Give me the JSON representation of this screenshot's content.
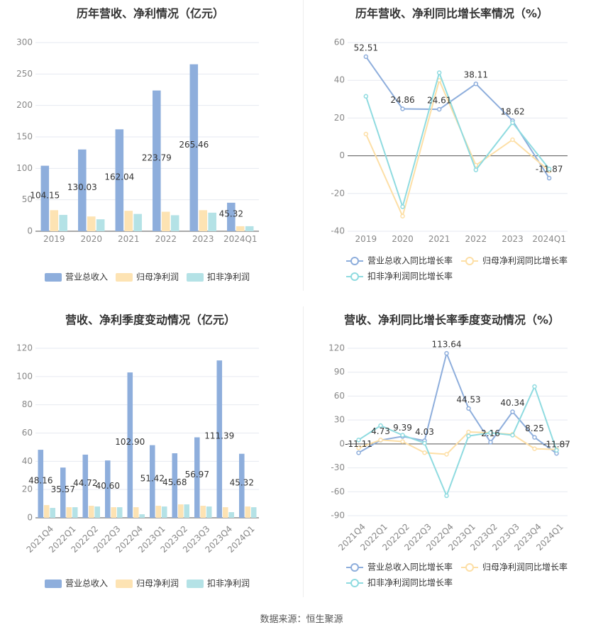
{
  "source_label": "数据来源：恒生聚源",
  "chart_data": [
    {
      "id": "annual-amount",
      "type": "bar",
      "title": "历年营收、净利情况（亿元）",
      "categories": [
        "2019",
        "2020",
        "2021",
        "2022",
        "2023",
        "2024Q1"
      ],
      "ylim": [
        0,
        300
      ],
      "yticks": [
        0,
        50,
        100,
        150,
        200,
        250,
        300
      ],
      "series": [
        {
          "name": "营业总收入",
          "color": "#8eaedc",
          "values": [
            104.15,
            130.03,
            162.04,
            223.79,
            265.46,
            45.32
          ],
          "show_labels": true
        },
        {
          "name": "归母净利润",
          "color": "#fde3b3",
          "values": [
            33.5,
            23.5,
            32.5,
            31,
            33.5,
            8
          ]
        },
        {
          "name": "扣非净利润",
          "color": "#b4e2e6",
          "values": [
            26,
            19,
            27.5,
            25.5,
            29.5,
            8
          ]
        }
      ],
      "data_labels": [
        "104.15",
        "130.03",
        "162.04",
        "223.79",
        "265.46",
        "45.32"
      ],
      "legend_position": "bottom",
      "grid": true
    },
    {
      "id": "annual-growth",
      "type": "line",
      "title": "历年营收、净利同比增长率情况（%）",
      "categories": [
        "2019",
        "2020",
        "2021",
        "2022",
        "2023",
        "2024Q1"
      ],
      "ylim": [
        -40,
        60
      ],
      "yticks": [
        -40,
        -20,
        0,
        20,
        40,
        60
      ],
      "series": [
        {
          "name": "营业总收入同比增长率",
          "color": "#8eaedc",
          "values": [
            52.51,
            24.86,
            24.61,
            38.11,
            18.62,
            -11.87
          ],
          "show_labels": true
        },
        {
          "name": "归母净利润同比增长率",
          "color": "#fddfa6",
          "values": [
            11.5,
            -32,
            40,
            -5,
            8.5,
            -8
          ]
        },
        {
          "name": "扣非净利润同比增长率",
          "color": "#8fdbe0",
          "values": [
            31.5,
            -27,
            44,
            -7.5,
            17.5,
            -7
          ]
        }
      ],
      "data_labels": [
        "52.51",
        "24.86",
        "24.61",
        "38.11",
        "18.62",
        "-11.87"
      ],
      "legend_position": "bottom",
      "grid": true
    },
    {
      "id": "quarterly-amount",
      "type": "bar",
      "title": "营收、净利季度变动情况（亿元）",
      "categories": [
        "2021Q4",
        "2022Q1",
        "2022Q2",
        "2022Q3",
        "2022Q4",
        "2023Q1",
        "2023Q2",
        "2023Q3",
        "2023Q4",
        "2024Q1"
      ],
      "ylim": [
        0,
        120
      ],
      "yticks": [
        0,
        20,
        40,
        60,
        80,
        100,
        120
      ],
      "series": [
        {
          "name": "营业总收入",
          "color": "#8eaedc",
          "values": [
            48.16,
            35.57,
            44.72,
            40.6,
            102.9,
            51.42,
            45.68,
            56.97,
            111.39,
            45.32
          ],
          "show_labels": true
        },
        {
          "name": "归母净利润",
          "color": "#fde3b3",
          "values": [
            9,
            7.5,
            8.5,
            7.5,
            7.5,
            8.5,
            9.5,
            8.5,
            7.5,
            8
          ]
        },
        {
          "name": "扣非净利润",
          "color": "#b4e2e6",
          "values": [
            7,
            7.5,
            8,
            7.5,
            2.5,
            8,
            9.5,
            8,
            4,
            7.5
          ]
        }
      ],
      "data_labels": [
        "48.16",
        "35.57",
        "44.72",
        "40.60",
        "102.90",
        "51.42",
        "45.68",
        "56.97",
        "111.39",
        "45.32"
      ],
      "legend_position": "bottom",
      "grid": true
    },
    {
      "id": "quarterly-growth",
      "type": "line",
      "title": "营收、净利同比增长率季度变动情况（%）",
      "categories": [
        "2021Q4",
        "2022Q1",
        "2022Q2",
        "2022Q3",
        "2022Q4",
        "2023Q1",
        "2023Q2",
        "2023Q3",
        "2023Q4",
        "2024Q1"
      ],
      "ylim": [
        -90,
        120
      ],
      "yticks": [
        -90,
        -60,
        -30,
        0,
        30,
        60,
        90,
        120
      ],
      "series": [
        {
          "name": "营业总收入同比增长率",
          "color": "#8eaedc",
          "values": [
            -11.11,
            4.73,
            9.39,
            4.03,
            113.64,
            44.53,
            2.16,
            40.34,
            8.25,
            -11.87
          ],
          "show_labels": true
        },
        {
          "name": "归母净利润同比增长率",
          "color": "#fddfa6",
          "values": [
            -5,
            5,
            3,
            -11,
            -13,
            15,
            14,
            12,
            -6,
            -7
          ]
        },
        {
          "name": "扣非净利润同比增长率",
          "color": "#8fdbe0",
          "values": [
            5,
            23,
            11,
            1,
            -65,
            10,
            14,
            11,
            72,
            -8
          ]
        }
      ],
      "data_labels": [
        "-11.11",
        "4.73",
        "9.39",
        "4.03",
        "113.64",
        "44.53",
        "2.16",
        "40.34",
        "8.25",
        "-11.87"
      ],
      "legend_position": "bottom",
      "grid": true
    }
  ]
}
